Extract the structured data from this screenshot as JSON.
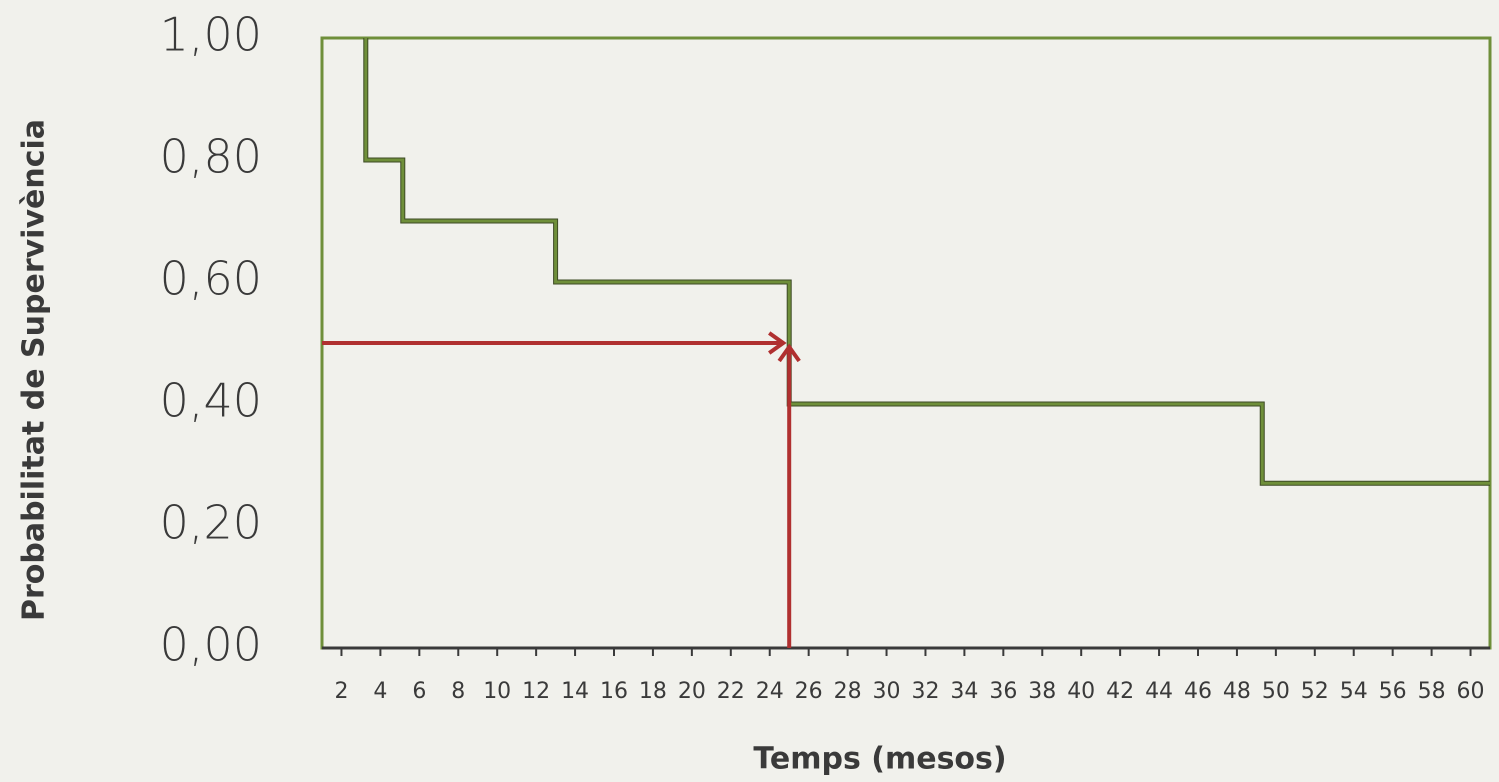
{
  "chart_data": {
    "type": "line",
    "x_label": "Temps (mesos)",
    "y_label": "Probabilitat de  Supervivència",
    "xlim": [
      1,
      61
    ],
    "ylim": [
      0,
      1
    ],
    "xticks": [
      2,
      4,
      6,
      8,
      10,
      12,
      14,
      16,
      18,
      20,
      22,
      24,
      26,
      28,
      30,
      32,
      34,
      36,
      38,
      40,
      42,
      44,
      46,
      48,
      50,
      52,
      54,
      56,
      58,
      60
    ],
    "yticks": [
      {
        "value": 0,
        "label": "0,00"
      },
      {
        "value": 0.2,
        "label": "0,20"
      },
      {
        "value": 0.4,
        "label": "0,40"
      },
      {
        "value": 0.6,
        "label": "0,60"
      },
      {
        "value": 0.8,
        "label": "0,80"
      },
      {
        "value": 1,
        "label": "1,00"
      }
    ],
    "series": [
      {
        "color": "#6f8f3a",
        "x": [
          3.25,
          3.25,
          5.15,
          5.15,
          13,
          13,
          25,
          25,
          49.3,
          49.3,
          61
        ],
        "values": [
          1,
          0.8,
          0.8,
          0.7,
          0.7,
          0.6,
          0.6,
          0.4,
          0.4,
          0.27,
          0.27
        ]
      }
    ],
    "median": {
      "x": 25,
      "y": 0.5,
      "color": "#b03030"
    }
  }
}
